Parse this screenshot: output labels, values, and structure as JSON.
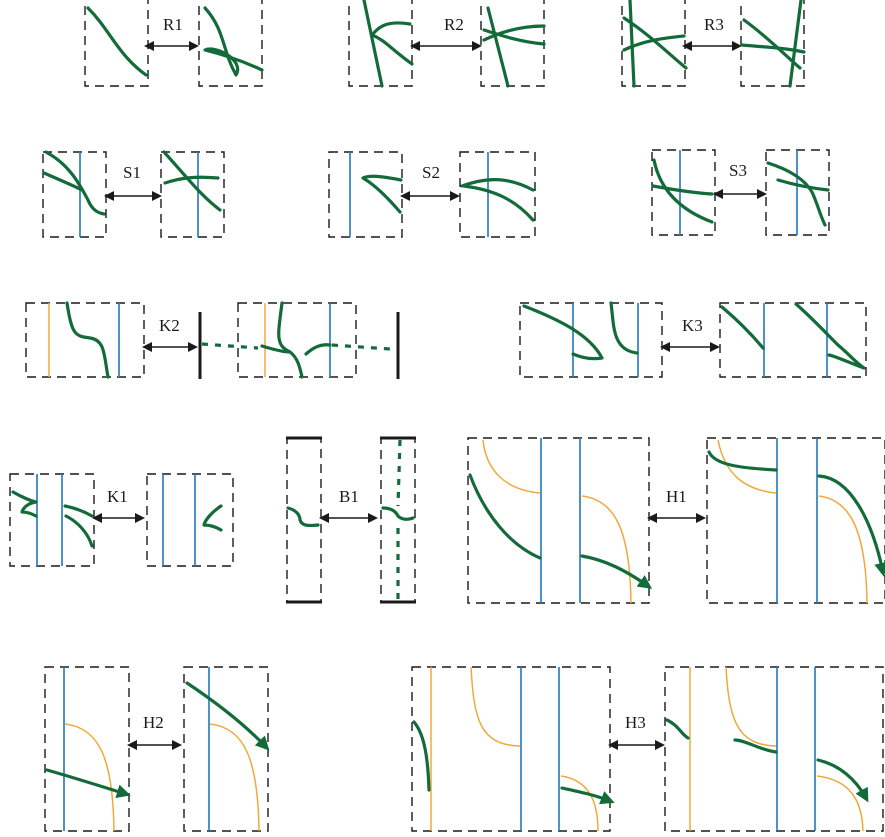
{
  "moves": {
    "R1": "R1",
    "R2": "R2",
    "R3": "R3",
    "S1": "S1",
    "S2": "S2",
    "S3": "S3",
    "K1": "K1",
    "K2": "K2",
    "K3": "K3",
    "B1": "B1",
    "H1": "H1",
    "H2": "H2",
    "H3": "H3"
  },
  "colors": {
    "strand": "#136b3a",
    "blue_line": "#2f7fc1",
    "orange_line": "#f2a93b",
    "frame": "#1a1a1a"
  }
}
